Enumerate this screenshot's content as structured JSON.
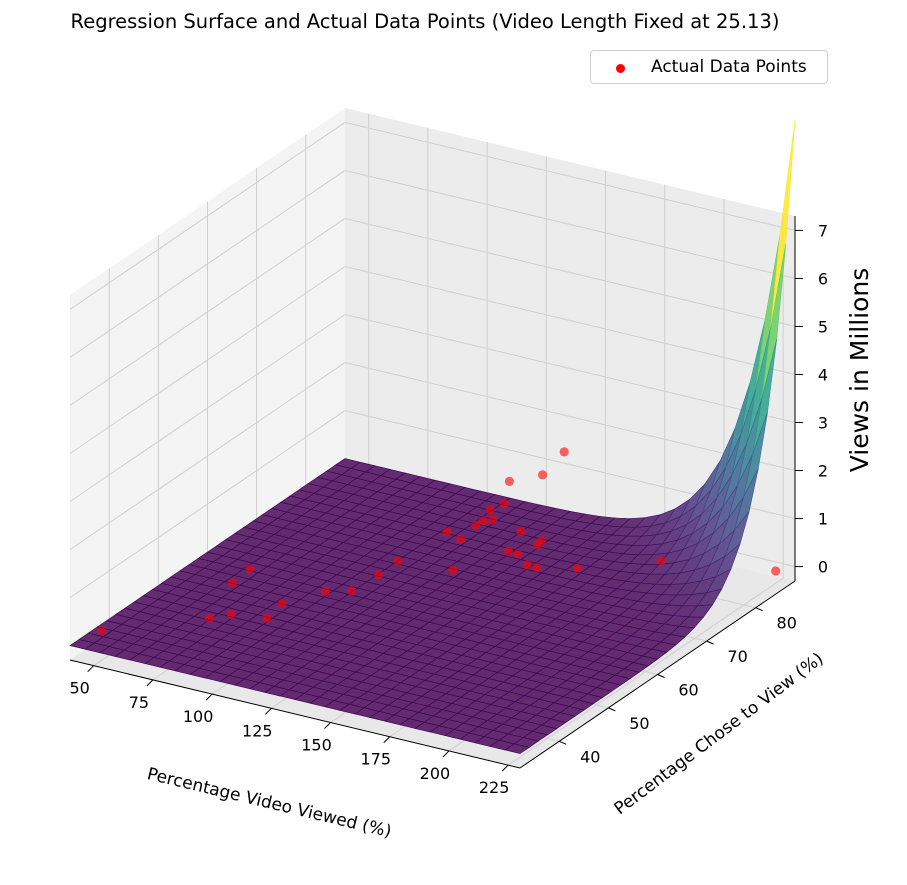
{
  "chart_data": {
    "type": "scatter",
    "title": "Regression Surface and Actual Data Points (Video Length Fixed at 25.13)",
    "xlabel": "Percentage Video Viewed (%)",
    "ylabel": "Percentage Chose to View (%)",
    "zlabel": "Views in Millions",
    "xlim": [
      40,
      230
    ],
    "ylim": [
      32,
      88
    ],
    "zlim": [
      -0.3,
      7.3
    ],
    "x_ticks": [
      "50",
      "75",
      "100",
      "125",
      "150",
      "175",
      "200",
      "225"
    ],
    "y_ticks": [
      "40",
      "50",
      "60",
      "70",
      "80"
    ],
    "z_ticks": [
      "0",
      "1",
      "2",
      "3",
      "4",
      "5",
      "6",
      "7"
    ],
    "legend": {
      "position": "top-right"
    },
    "series": [
      {
        "name": "Actual Data Points",
        "color": "#ff0000",
        "points": [
          {
            "x": 43,
            "y": 37,
            "z": 0.0
          },
          {
            "x": 62,
            "y": 58,
            "z": 0.05
          },
          {
            "x": 63,
            "y": 54,
            "z": 0.05
          },
          {
            "x": 72,
            "y": 45,
            "z": 0.05
          },
          {
            "x": 77,
            "y": 47,
            "z": 0.05
          },
          {
            "x": 88,
            "y": 52,
            "z": 0.05
          },
          {
            "x": 90,
            "y": 48,
            "z": 0.05
          },
          {
            "x": 96,
            "y": 57,
            "z": 0.05
          },
          {
            "x": 105,
            "y": 58,
            "z": 0.1
          },
          {
            "x": 106,
            "y": 63,
            "z": 0.1
          },
          {
            "x": 108,
            "y": 66,
            "z": 0.2
          },
          {
            "x": 112,
            "y": 74,
            "z": 0.3
          },
          {
            "x": 115,
            "y": 80,
            "z": 0.15
          },
          {
            "x": 118,
            "y": 77,
            "z": 0.3
          },
          {
            "x": 120,
            "y": 79,
            "z": 0.5
          },
          {
            "x": 122,
            "y": 72,
            "z": 0.4
          },
          {
            "x": 123,
            "y": 78,
            "z": 0.4
          },
          {
            "x": 126,
            "y": 80,
            "z": 1.1
          },
          {
            "x": 128,
            "y": 78,
            "z": 0.8
          },
          {
            "x": 127,
            "y": 68,
            "z": 0.1
          },
          {
            "x": 135,
            "y": 78,
            "z": 0.3
          },
          {
            "x": 138,
            "y": 74,
            "z": 0.2
          },
          {
            "x": 140,
            "y": 80,
            "z": 1.4
          },
          {
            "x": 142,
            "y": 74,
            "z": 0.2
          },
          {
            "x": 144,
            "y": 77,
            "z": 0.2
          },
          {
            "x": 145,
            "y": 82,
            "z": 1.8
          },
          {
            "x": 148,
            "y": 76,
            "z": 0.4
          },
          {
            "x": 150,
            "y": 72,
            "z": 0.2
          },
          {
            "x": 152,
            "y": 73,
            "z": 0.1
          },
          {
            "x": 165,
            "y": 75,
            "z": 0.1
          },
          {
            "x": 190,
            "y": 80,
            "z": 0.2
          },
          {
            "x": 226,
            "y": 86,
            "z": 0.0
          }
        ]
      }
    ],
    "surface": {
      "colormap": "viridis",
      "model": "exponential growth in x and y"
    }
  }
}
